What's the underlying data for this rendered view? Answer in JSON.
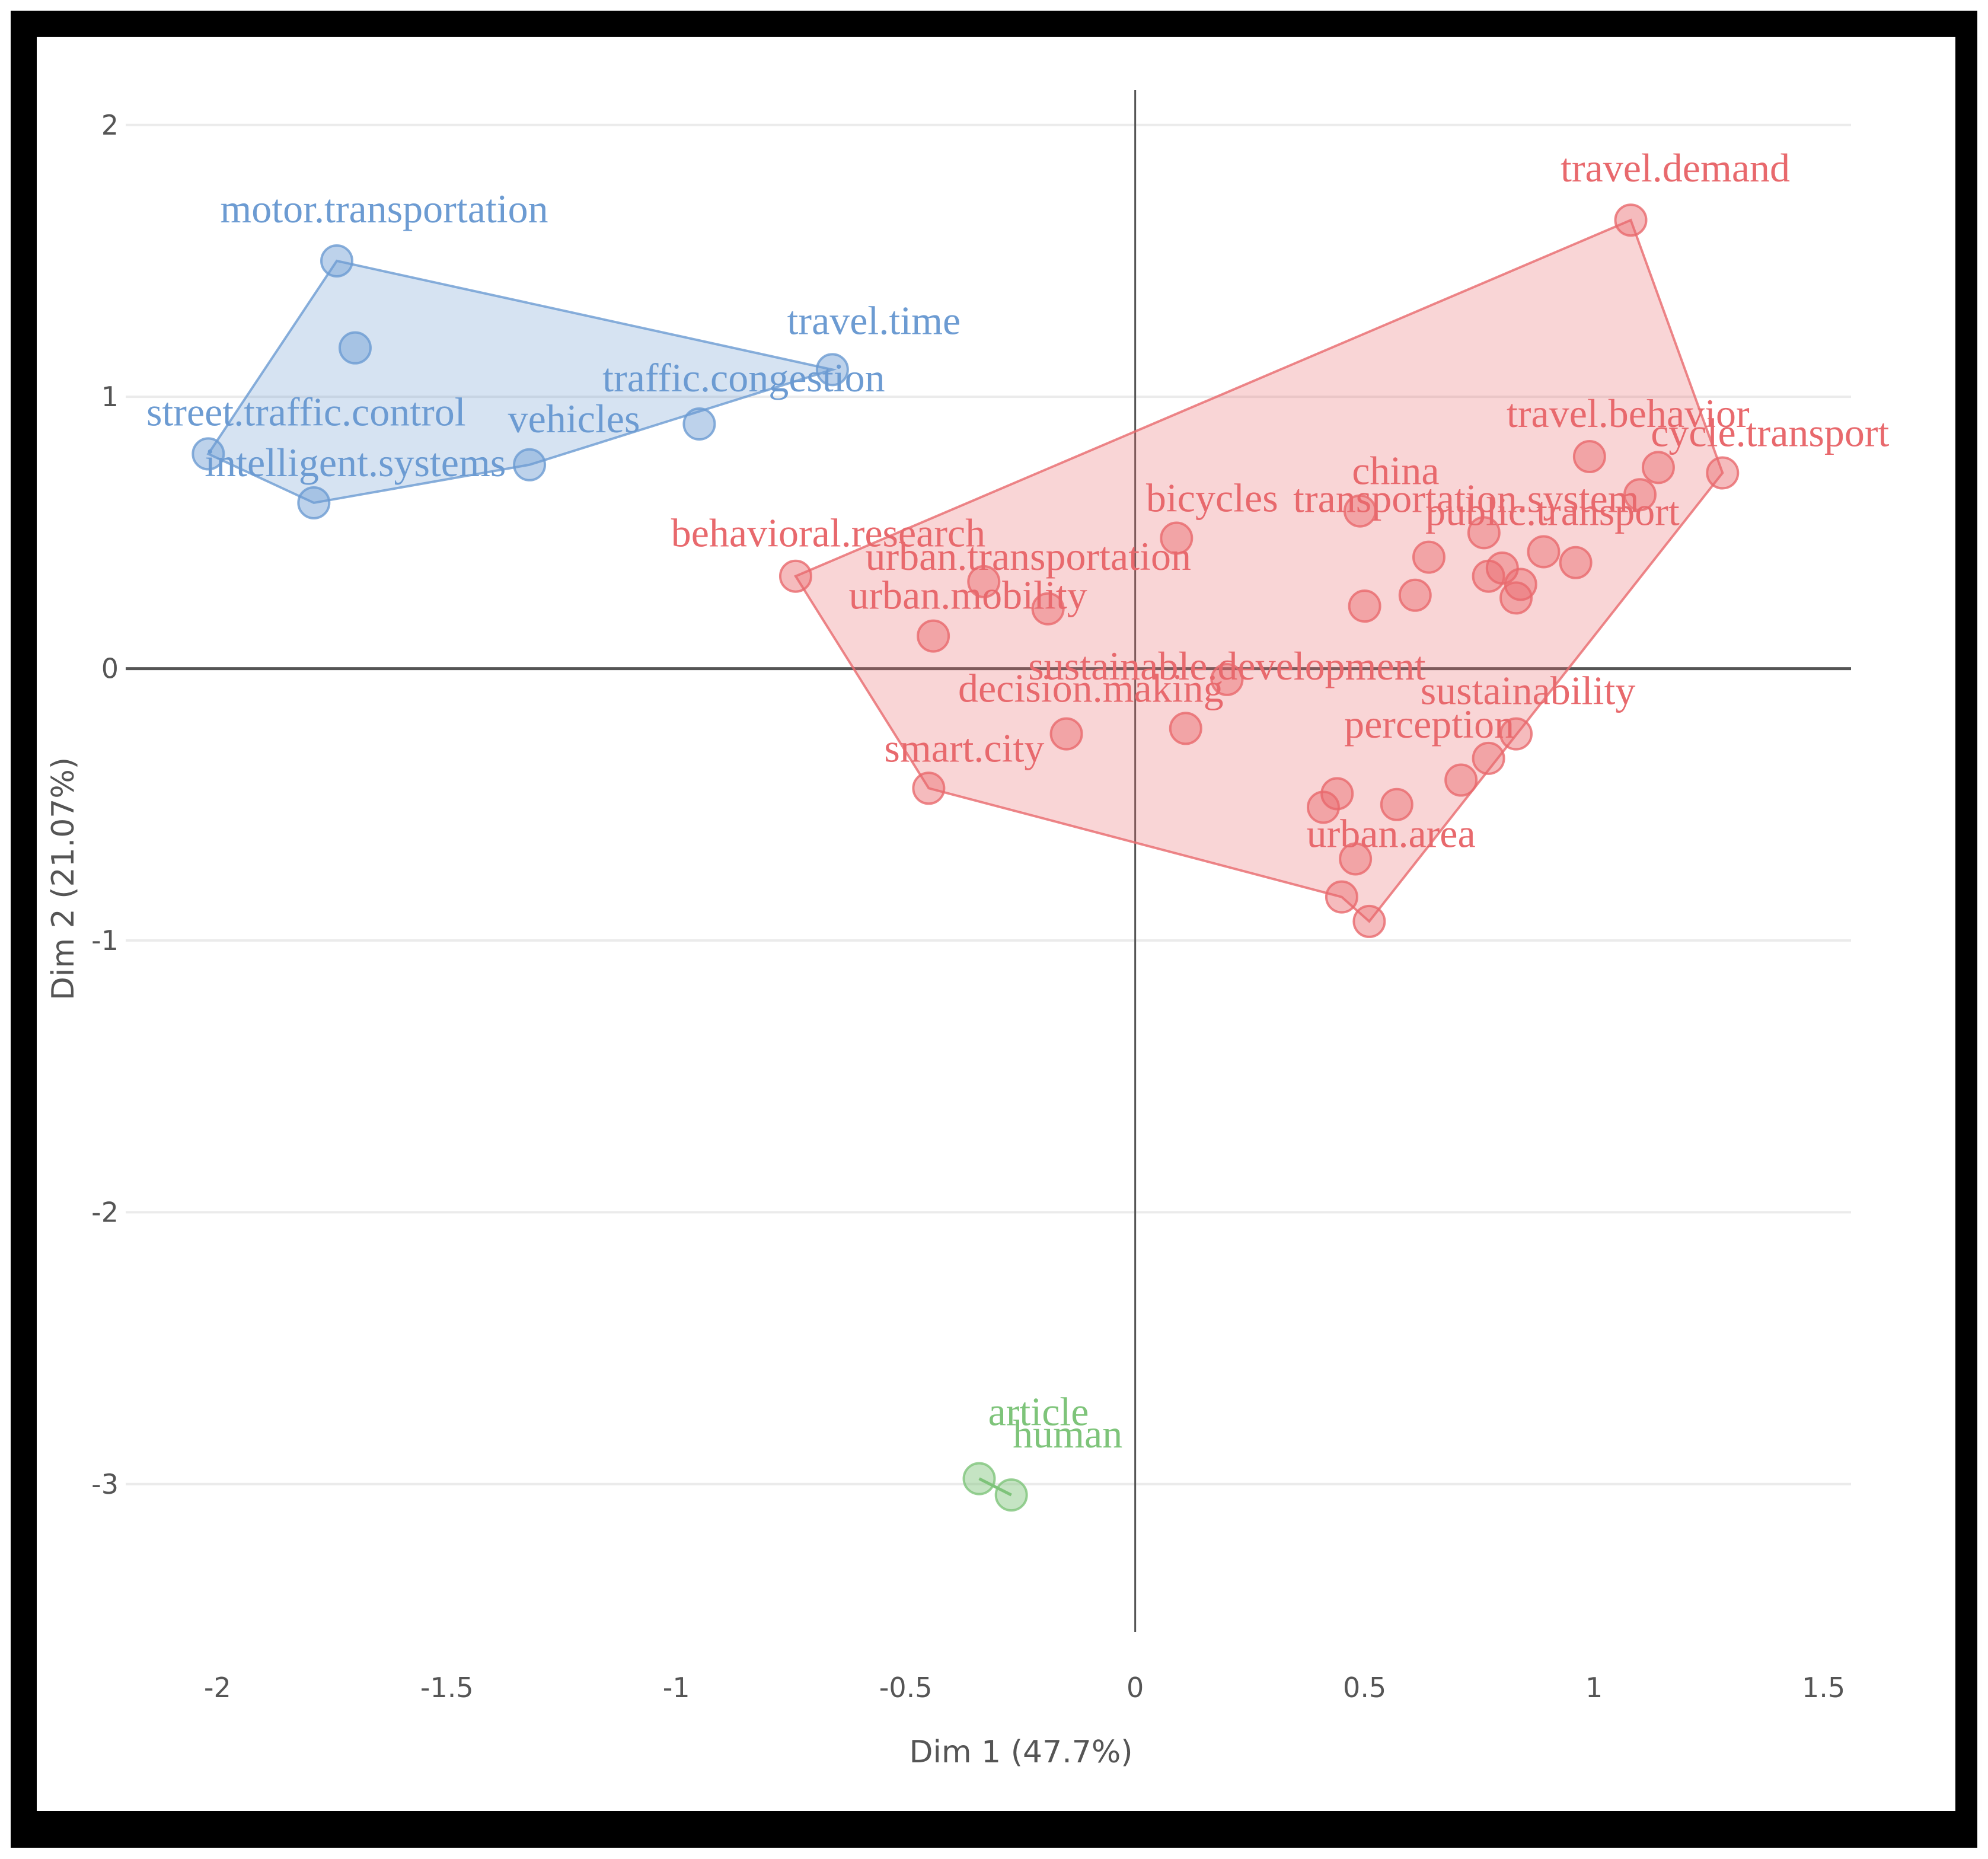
{
  "chart_data": {
    "type": "scatter",
    "xlabel": "Dim 1 (47.7%)",
    "ylabel": "Dim 2 (21.07%)",
    "xlim": [
      -2.2,
      1.56
    ],
    "ylim": [
      -3.5,
      2.15
    ],
    "x_ticks": [
      -2,
      -1.5,
      -1,
      -0.5,
      0,
      0.5,
      1,
      1.5
    ],
    "y_ticks": [
      2,
      1,
      0,
      -1,
      -2,
      -3
    ],
    "clusters": [
      {
        "name": "cluster-1",
        "color": "#6c9bd2",
        "hull": [
          [
            -1.74,
            1.5
          ],
          [
            -0.66,
            1.1
          ],
          [
            -1.32,
            0.75
          ],
          [
            -1.79,
            0.61
          ],
          [
            -2.02,
            0.79
          ]
        ],
        "points": [
          {
            "label": "motor.transportation",
            "x": -1.74,
            "y": 1.5
          },
          {
            "label": "",
            "x": -1.7,
            "y": 1.18
          },
          {
            "label": "travel.time",
            "x": -0.66,
            "y": 1.1
          },
          {
            "label": "traffic.congestion",
            "x": -0.95,
            "y": 0.9
          },
          {
            "label": "vehicles",
            "x": -1.32,
            "y": 0.75
          },
          {
            "label": "intelligent.systems",
            "x": -1.79,
            "y": 0.61
          },
          {
            "label": "street.traffic.control",
            "x": -2.02,
            "y": 0.79
          }
        ]
      },
      {
        "name": "cluster-2",
        "color": "#e8696d",
        "hull": [
          [
            1.08,
            1.65
          ],
          [
            1.28,
            0.72
          ],
          [
            0.51,
            -0.93
          ],
          [
            0.45,
            -0.84
          ],
          [
            -0.45,
            -0.44
          ],
          [
            -0.74,
            0.34
          ]
        ],
        "points": [
          {
            "label": "travel.demand",
            "x": 1.08,
            "y": 1.65
          },
          {
            "label": "travel.behavior",
            "x": 0.99,
            "y": 0.78
          },
          {
            "label": "cycle.transport",
            "x": 1.28,
            "y": 0.72
          },
          {
            "label": "",
            "x": 1.14,
            "y": 0.74
          },
          {
            "label": "",
            "x": 1.1,
            "y": 0.64
          },
          {
            "label": "bicycles",
            "x": 0.09,
            "y": 0.48
          },
          {
            "label": "china",
            "x": 0.49,
            "y": 0.58
          },
          {
            "label": "transportation.system",
            "x": 0.76,
            "y": 0.5
          },
          {
            "label": "public.transport",
            "x": 0.89,
            "y": 0.43
          },
          {
            "label": "",
            "x": 0.64,
            "y": 0.41
          },
          {
            "label": "",
            "x": 0.96,
            "y": 0.39
          },
          {
            "label": "",
            "x": 0.8,
            "y": 0.37
          },
          {
            "label": "",
            "x": 0.77,
            "y": 0.34
          },
          {
            "label": "",
            "x": 0.84,
            "y": 0.31
          },
          {
            "label": "",
            "x": 0.61,
            "y": 0.27
          },
          {
            "label": "",
            "x": 0.83,
            "y": 0.26
          },
          {
            "label": "",
            "x": 0.5,
            "y": 0.23
          },
          {
            "label": "behavioral.research",
            "x": -0.74,
            "y": 0.34
          },
          {
            "label": "urban.transportation",
            "x": -0.33,
            "y": 0.32
          },
          {
            "label": "urban.mobility",
            "x": -0.19,
            "y": 0.22
          },
          {
            "label": "",
            "x": -0.44,
            "y": 0.12
          },
          {
            "label": "sustainable.development",
            "x": 0.2,
            "y": -0.04
          },
          {
            "label": "decision.making",
            "x": 0.11,
            "y": -0.22
          },
          {
            "label": "",
            "x": -0.15,
            "y": -0.24
          },
          {
            "label": "smart.city",
            "x": -0.45,
            "y": -0.44
          },
          {
            "label": "sustainability",
            "x": 0.83,
            "y": -0.24
          },
          {
            "label": "perception",
            "x": 0.77,
            "y": -0.33
          },
          {
            "label": "",
            "x": 0.71,
            "y": -0.41
          },
          {
            "label": "",
            "x": 0.57,
            "y": -0.5
          },
          {
            "label": "",
            "x": 0.44,
            "y": -0.46
          },
          {
            "label": "",
            "x": 0.41,
            "y": -0.51
          },
          {
            "label": "urban.area",
            "x": 0.48,
            "y": -0.7
          },
          {
            "label": "",
            "x": 0.45,
            "y": -0.84
          },
          {
            "label": "",
            "x": 0.51,
            "y": -0.93
          }
        ]
      },
      {
        "name": "cluster-3",
        "color": "#7ec47a",
        "hull": [
          [
            -0.34,
            -2.98
          ],
          [
            -0.27,
            -3.04
          ]
        ],
        "points": [
          {
            "label": "article",
            "x": -0.34,
            "y": -2.98
          },
          {
            "label": "human",
            "x": -0.27,
            "y": -3.04
          }
        ]
      }
    ]
  }
}
